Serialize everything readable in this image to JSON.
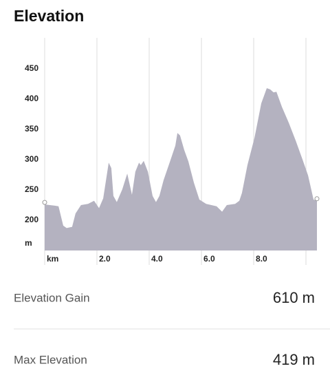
{
  "header": {
    "title": "Elevation"
  },
  "chart_data": {
    "type": "area",
    "color": "#b4b2c0",
    "grid": true,
    "x": [
      0,
      0.39,
      0.53,
      0.71,
      0.84,
      1.05,
      1.18,
      1.39,
      1.66,
      1.89,
      2.08,
      2.24,
      2.45,
      2.55,
      2.63,
      2.76,
      2.97,
      3.16,
      3.34,
      3.47,
      3.61,
      3.68,
      3.79,
      3.95,
      4.13,
      4.26,
      4.39,
      4.55,
      4.82,
      5.0,
      5.08,
      5.18,
      5.34,
      5.5,
      5.71,
      5.92,
      6.18,
      6.58,
      6.79,
      6.97,
      7.29,
      7.45,
      7.55,
      7.76,
      8.03,
      8.29,
      8.5,
      8.63,
      8.76,
      8.87,
      9.08,
      9.34,
      9.61,
      9.87,
      10.08,
      10.29,
      10.42
    ],
    "values": [
      226,
      224,
      223,
      191,
      187,
      189,
      211,
      225,
      227,
      232,
      220,
      236,
      295,
      286,
      240,
      230,
      251,
      277,
      242,
      280,
      295,
      291,
      298,
      280,
      240,
      230,
      240,
      266,
      300,
      323,
      344,
      340,
      316,
      297,
      262,
      234,
      227,
      223,
      214,
      225,
      227,
      232,
      245,
      291,
      336,
      393,
      418,
      416,
      411,
      412,
      387,
      361,
      331,
      300,
      274,
      234,
      232
    ],
    "xlim": [
      0,
      10.42
    ],
    "ylim": [
      150,
      501
    ],
    "xticks": [
      {
        "value": 0,
        "label": "km"
      },
      {
        "value": 2,
        "label": "2.0"
      },
      {
        "value": 4,
        "label": "4.0"
      },
      {
        "value": 6,
        "label": "6.0"
      },
      {
        "value": 8,
        "label": "8.0"
      },
      {
        "value": 10,
        "label": null
      }
    ],
    "yticks": [
      {
        "value": 150,
        "label": "m"
      },
      200,
      250,
      300,
      350,
      400,
      450
    ]
  },
  "stats": [
    {
      "label": "Elevation Gain",
      "value": "610 m"
    },
    {
      "label": "Max Elevation",
      "value": "419 m"
    }
  ]
}
